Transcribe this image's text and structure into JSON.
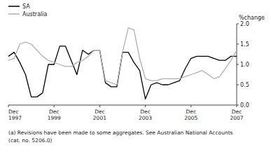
{
  "chart_data": {
    "type": "line",
    "y_label": "%change",
    "annotations": [
      "(a) Revisions have been made to some aggregates. See Australian National Accounts",
      "(cat. no. 5206.0)"
    ],
    "categories": [
      "Dec\n1997",
      null,
      null,
      null,
      null,
      null,
      null,
      null,
      "Dec\n1999",
      null,
      null,
      null,
      null,
      null,
      null,
      null,
      "Dec\n2001",
      null,
      null,
      null,
      null,
      null,
      null,
      null,
      "Dec\n2003",
      null,
      null,
      null,
      null,
      null,
      null,
      null,
      "Dec\n2005",
      null,
      null,
      null,
      null,
      null,
      null,
      null,
      "Dec\n2007"
    ],
    "series": [
      {
        "name": "SA",
        "color": "#000000",
        "values": [
          1.2,
          1.3,
          1.05,
          0.75,
          0.2,
          0.2,
          0.3,
          1.0,
          1.0,
          1.45,
          1.45,
          1.1,
          0.75,
          1.35,
          1.25,
          1.35,
          1.35,
          0.55,
          0.45,
          0.45,
          1.3,
          1.3,
          1.05,
          0.85,
          0.15,
          0.5,
          0.55,
          0.5,
          0.5,
          0.55,
          0.6,
          0.9,
          1.15,
          1.2,
          1.2,
          1.2,
          1.15,
          1.1,
          1.1,
          1.2,
          1.2
        ]
      },
      {
        "name": "Australia",
        "color": "#b0b0b0",
        "values": [
          1.1,
          1.15,
          1.5,
          1.55,
          1.5,
          1.35,
          1.2,
          1.1,
          1.05,
          1.0,
          0.95,
          0.95,
          1.05,
          1.1,
          1.2,
          1.35,
          1.35,
          0.6,
          0.55,
          0.5,
          1.3,
          1.9,
          1.85,
          1.15,
          0.65,
          0.6,
          0.6,
          0.65,
          0.65,
          0.65,
          0.65,
          0.7,
          0.75,
          0.8,
          0.85,
          0.75,
          0.65,
          0.7,
          0.9,
          1.1,
          1.35
        ]
      }
    ],
    "ylim": [
      0,
      2.0
    ],
    "yticks": [
      {
        "value": 0,
        "label": "0.0"
      },
      0.5,
      {
        "value": 1.0,
        "label": "1.0"
      },
      1.5,
      {
        "value": 2.0,
        "label": "2.0"
      }
    ],
    "grid": false,
    "legend": "upper left"
  }
}
